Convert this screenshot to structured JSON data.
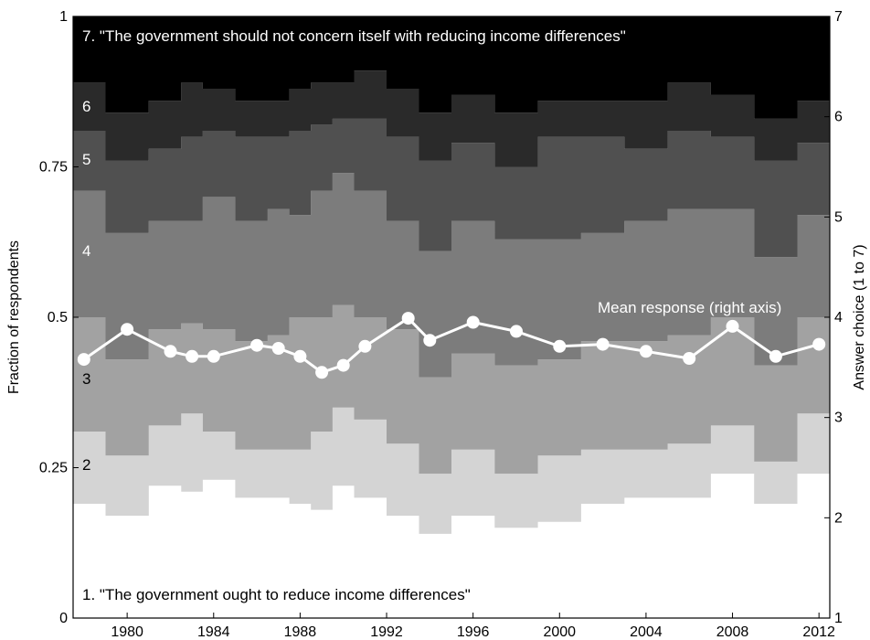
{
  "chart_data": {
    "type": "area",
    "title": "",
    "xlabel": "",
    "ylabel": "Fraction of respondents",
    "ylabel_right": "Answer choice (1 to 7)",
    "xlim": [
      1977.5,
      2012.5
    ],
    "ylim": [
      0,
      1
    ],
    "ylim_right": [
      1,
      7
    ],
    "x_ticks": [
      1980,
      1984,
      1988,
      1992,
      1996,
      2000,
      2004,
      2008,
      2012
    ],
    "x_tick_labels": [
      "1980",
      "1984",
      "1988",
      "1992",
      "1996",
      "2000",
      "2004",
      "2008",
      "2012"
    ],
    "y_ticks": [
      0,
      0.25,
      0.5,
      0.75,
      1
    ],
    "y_tick_labels": [
      "0",
      "0.25",
      "0.5",
      "0.75",
      "1"
    ],
    "y_right_ticks": [
      1,
      2,
      3,
      4,
      5,
      6,
      7
    ],
    "y_right_tick_labels": [
      "1",
      "2",
      "3",
      "4",
      "5",
      "6",
      "7"
    ],
    "x": [
      1978,
      1980,
      1982,
      1983,
      1984,
      1986,
      1987,
      1988,
      1989,
      1990,
      1991,
      1993,
      1994,
      1996,
      1998,
      2000,
      2002,
      2004,
      2006,
      2008,
      2010,
      2012
    ],
    "cumulative_upper": {
      "1": [
        0.19,
        0.17,
        0.22,
        0.21,
        0.23,
        0.2,
        0.2,
        0.19,
        0.18,
        0.22,
        0.2,
        0.17,
        0.14,
        0.17,
        0.15,
        0.16,
        0.19,
        0.2,
        0.2,
        0.24,
        0.19,
        0.24
      ],
      "2": [
        0.31,
        0.27,
        0.32,
        0.34,
        0.31,
        0.28,
        0.28,
        0.28,
        0.31,
        0.35,
        0.33,
        0.29,
        0.24,
        0.28,
        0.24,
        0.27,
        0.28,
        0.28,
        0.29,
        0.32,
        0.26,
        0.34
      ],
      "3": [
        0.5,
        0.43,
        0.48,
        0.49,
        0.48,
        0.46,
        0.47,
        0.5,
        0.5,
        0.52,
        0.5,
        0.48,
        0.4,
        0.44,
        0.42,
        0.43,
        0.46,
        0.46,
        0.47,
        0.5,
        0.42,
        0.5
      ],
      "4": [
        0.71,
        0.64,
        0.66,
        0.66,
        0.7,
        0.66,
        0.68,
        0.67,
        0.71,
        0.74,
        0.71,
        0.66,
        0.61,
        0.66,
        0.63,
        0.63,
        0.64,
        0.66,
        0.68,
        0.68,
        0.6,
        0.67
      ],
      "5": [
        0.81,
        0.76,
        0.78,
        0.8,
        0.81,
        0.8,
        0.8,
        0.81,
        0.82,
        0.83,
        0.83,
        0.8,
        0.76,
        0.79,
        0.75,
        0.8,
        0.8,
        0.78,
        0.81,
        0.8,
        0.76,
        0.79
      ],
      "6": [
        0.89,
        0.84,
        0.86,
        0.89,
        0.88,
        0.86,
        0.86,
        0.88,
        0.89,
        0.89,
        0.91,
        0.88,
        0.84,
        0.87,
        0.84,
        0.86,
        0.86,
        0.86,
        0.89,
        0.87,
        0.83,
        0.86
      ]
    },
    "series": [
      {
        "name": "1. \"The government ought to reduce income differences\"",
        "label": "1",
        "color": "#ffffff"
      },
      {
        "name": "2",
        "label": "2",
        "color": "#d4d4d4"
      },
      {
        "name": "3",
        "label": "3",
        "color": "#a2a2a2"
      },
      {
        "name": "4",
        "label": "4",
        "color": "#7c7c7c"
      },
      {
        "name": "5",
        "label": "5",
        "color": "#505050"
      },
      {
        "name": "6",
        "label": "6",
        "color": "#2a2a2a"
      },
      {
        "name": "7. \"The government should not concern itself with reducing income differences\"",
        "label": "7",
        "color": "#000000"
      }
    ],
    "mean_response": {
      "name": "Mean response (right axis)",
      "x": [
        1978,
        1980,
        1982,
        1983,
        1984,
        1986,
        1987,
        1988,
        1989,
        1990,
        1991,
        1993,
        1994,
        1996,
        1998,
        2000,
        2002,
        2004,
        2006,
        2008,
        2010,
        2012
      ],
      "values": [
        3.58,
        3.88,
        3.66,
        3.61,
        3.61,
        3.72,
        3.69,
        3.61,
        3.45,
        3.52,
        3.71,
        3.99,
        3.77,
        3.95,
        3.86,
        3.71,
        3.73,
        3.66,
        3.59,
        3.91,
        3.61,
        3.73
      ],
      "color": "#ffffff"
    },
    "band_labels": {
      "top": "7. \"The government should not concern itself with reducing income differences\"",
      "bottom": "1. \"The government ought to reduce income differences\"",
      "b2": "2",
      "b3": "3",
      "b4": "4",
      "b5": "5",
      "b6": "6"
    },
    "grid": false,
    "legend": "none"
  }
}
